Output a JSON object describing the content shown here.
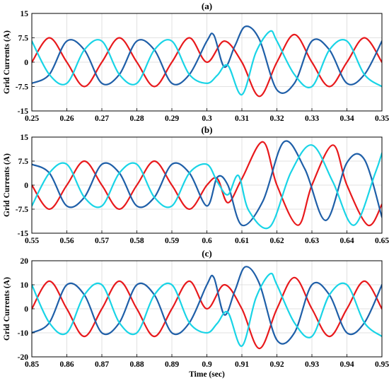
{
  "chart_data": [
    {
      "type": "line",
      "title": "(a)",
      "xlabel": "",
      "ylabel": "Grid Currents (A)",
      "xlim": [
        0.25,
        0.35
      ],
      "ylim": [
        -15,
        15
      ],
      "grid": true,
      "x_ticks": [
        0.25,
        0.26,
        0.27,
        0.28,
        0.29,
        0.3,
        0.31,
        0.32,
        0.33,
        0.34,
        0.35
      ],
      "x_tick_labels": [
        "0.25",
        "0.26",
        "0.27",
        "0.28",
        "0.29",
        "0.3",
        "0.31",
        "0.32",
        "0.33",
        "0.34",
        "0.35"
      ],
      "y_ticks": [
        15,
        7.5,
        0,
        -7.5,
        -15
      ],
      "y_tick_labels": [
        "15",
        "7.5",
        "0",
        "-7.5",
        "-15"
      ],
      "series": [
        {
          "color": "#e8191c",
          "x": [
            0.25,
            0.255,
            0.26,
            0.265,
            0.27,
            0.275,
            0.28,
            0.285,
            0.29,
            0.295,
            0.3,
            0.305,
            0.31,
            0.315,
            0.32,
            0.325,
            0.33,
            0.335,
            0.34,
            0.345,
            0.35
          ],
          "y": [
            0,
            7.5,
            0,
            -7.5,
            0,
            7.5,
            0,
            -7.5,
            0,
            7.5,
            0,
            6.5,
            0,
            -10.5,
            0,
            8.5,
            0,
            -7.5,
            0,
            7.5,
            0
          ]
        },
        {
          "color": "#1f5fa8",
          "x": [
            0.25,
            0.255,
            0.26,
            0.265,
            0.27,
            0.275,
            0.28,
            0.285,
            0.29,
            0.295,
            0.3,
            0.302,
            0.305,
            0.308,
            0.311,
            0.315,
            0.32,
            0.325,
            0.33,
            0.335,
            0.34,
            0.345,
            0.35
          ],
          "y": [
            -6.5,
            -3.8,
            6.5,
            3.8,
            -6.5,
            -3.8,
            6.5,
            3.8,
            -6.5,
            -3.8,
            6.5,
            8.3,
            -1.5,
            5,
            11,
            7,
            -8.5,
            -6.5,
            6.5,
            3.8,
            -6.5,
            -3.8,
            6.5
          ]
        },
        {
          "color": "#19d4e6",
          "x": [
            0.25,
            0.255,
            0.26,
            0.265,
            0.27,
            0.275,
            0.28,
            0.285,
            0.29,
            0.295,
            0.3,
            0.303,
            0.306,
            0.31,
            0.314,
            0.318,
            0.32,
            0.325,
            0.33,
            0.335,
            0.34,
            0.345,
            0.35
          ],
          "y": [
            6.5,
            -3.8,
            -6.5,
            3.8,
            6.5,
            -3.8,
            -6.5,
            3.8,
            6.5,
            -3.8,
            -6.5,
            -4,
            -1,
            -10,
            3,
            9.5,
            6.5,
            -3.8,
            -7.5,
            3.8,
            6.5,
            -3.8,
            -7.5
          ]
        }
      ]
    },
    {
      "type": "line",
      "title": "(b)",
      "xlabel": "",
      "ylabel": "Grid Currents (A)",
      "xlim": [
        0.55,
        0.65
      ],
      "ylim": [
        -15,
        15
      ],
      "grid": true,
      "x_ticks": [
        0.55,
        0.56,
        0.57,
        0.58,
        0.59,
        0.6,
        0.61,
        0.62,
        0.63,
        0.64,
        0.65
      ],
      "x_tick_labels": [
        "0.55",
        "0.56",
        "0.57",
        "0.58",
        "0.59",
        "0.6",
        "0.61",
        "0.62",
        "0.63",
        "0.64",
        "0.65"
      ],
      "y_ticks": [
        15,
        7.5,
        0,
        -7.5,
        -15
      ],
      "y_tick_labels": [
        "15",
        "7.5",
        "0",
        "-7.5",
        "-15"
      ],
      "series": [
        {
          "color": "#e8191c",
          "x": [
            0.55,
            0.555,
            0.56,
            0.565,
            0.57,
            0.575,
            0.58,
            0.585,
            0.59,
            0.595,
            0.6,
            0.603,
            0.606,
            0.61,
            0.616,
            0.62,
            0.626,
            0.63,
            0.636,
            0.64,
            0.646,
            0.65
          ],
          "y": [
            0,
            -7.5,
            0,
            7.5,
            0,
            -7.5,
            0,
            7.5,
            0,
            -7.5,
            0,
            2,
            -5.5,
            2,
            13.5,
            0,
            -12.5,
            0,
            12.5,
            0,
            -12.5,
            -6
          ]
        },
        {
          "color": "#1f5fa8",
          "x": [
            0.55,
            0.555,
            0.56,
            0.565,
            0.57,
            0.575,
            0.58,
            0.585,
            0.59,
            0.595,
            0.6,
            0.603,
            0.606,
            0.61,
            0.616,
            0.622,
            0.628,
            0.634,
            0.64,
            0.645,
            0.65
          ],
          "y": [
            6.5,
            3.8,
            -6.5,
            -3.8,
            6.5,
            3.8,
            -6.5,
            -3.8,
            6.5,
            3.8,
            -6.5,
            2.5,
            0,
            -12.5,
            -5,
            13.5,
            5,
            -11,
            7,
            8,
            -10
          ]
        },
        {
          "color": "#19d4e6",
          "x": [
            0.55,
            0.555,
            0.56,
            0.565,
            0.57,
            0.575,
            0.58,
            0.585,
            0.59,
            0.595,
            0.6,
            0.603,
            0.606,
            0.609,
            0.612,
            0.618,
            0.624,
            0.63,
            0.636,
            0.642,
            0.648,
            0.65
          ],
          "y": [
            -6.5,
            3.8,
            6.5,
            -3.8,
            -6.5,
            3.8,
            6.5,
            -3.8,
            -6.5,
            3.8,
            6.5,
            1,
            -3,
            3,
            -8,
            -13,
            4,
            12.5,
            1,
            -12.5,
            3.5,
            10
          ]
        }
      ]
    },
    {
      "type": "line",
      "title": "(c)",
      "xlabel": "Time (sec)",
      "ylabel": "Grid Currents (A)",
      "xlim": [
        0.85,
        0.95
      ],
      "ylim": [
        -20,
        20
      ],
      "grid": true,
      "x_ticks": [
        0.85,
        0.86,
        0.87,
        0.88,
        0.89,
        0.9,
        0.91,
        0.92,
        0.93,
        0.94,
        0.95
      ],
      "x_tick_labels": [
        "0.85",
        "0.86",
        "0.87",
        "0.88",
        "0.89",
        "0.9",
        "0.91",
        "0.92",
        "0.93",
        "0.94",
        "0.95"
      ],
      "y_ticks": [
        20,
        10,
        0,
        -10,
        -20
      ],
      "y_tick_labels": [
        "20",
        "10",
        "0",
        "-10",
        "-20"
      ],
      "series": [
        {
          "color": "#e8191c",
          "x": [
            0.85,
            0.855,
            0.86,
            0.865,
            0.87,
            0.875,
            0.88,
            0.885,
            0.89,
            0.895,
            0.9,
            0.905,
            0.91,
            0.915,
            0.92,
            0.925,
            0.93,
            0.935,
            0.94,
            0.945,
            0.95
          ],
          "y": [
            0,
            11.5,
            0,
            -11.5,
            0,
            11.5,
            0,
            -11.5,
            0,
            11.5,
            0,
            10,
            0,
            -16.5,
            0,
            13,
            0,
            -11.5,
            0,
            11.5,
            0
          ]
        },
        {
          "color": "#1f5fa8",
          "x": [
            0.85,
            0.855,
            0.86,
            0.865,
            0.87,
            0.875,
            0.88,
            0.885,
            0.89,
            0.895,
            0.9,
            0.902,
            0.905,
            0.908,
            0.911,
            0.915,
            0.92,
            0.925,
            0.93,
            0.935,
            0.94,
            0.945,
            0.95
          ],
          "y": [
            -10,
            -5.8,
            10,
            5.8,
            -10,
            -5.8,
            10,
            5.8,
            -10,
            -5.8,
            10,
            13,
            -2.5,
            7.5,
            17.5,
            10.5,
            -13,
            -10,
            10,
            5.8,
            -10,
            -5.8,
            10
          ]
        },
        {
          "color": "#19d4e6",
          "x": [
            0.85,
            0.855,
            0.86,
            0.865,
            0.87,
            0.875,
            0.88,
            0.885,
            0.89,
            0.895,
            0.9,
            0.903,
            0.906,
            0.91,
            0.914,
            0.918,
            0.92,
            0.925,
            0.93,
            0.935,
            0.94,
            0.945,
            0.95
          ],
          "y": [
            10,
            -5.8,
            -10,
            5.8,
            10,
            -5.8,
            -10,
            5.8,
            10,
            -5.8,
            -10,
            -6,
            -1.5,
            -15.5,
            4.5,
            14.5,
            10,
            -5.8,
            -11.5,
            5.8,
            10,
            -5.8,
            -11.5
          ]
        }
      ]
    }
  ]
}
